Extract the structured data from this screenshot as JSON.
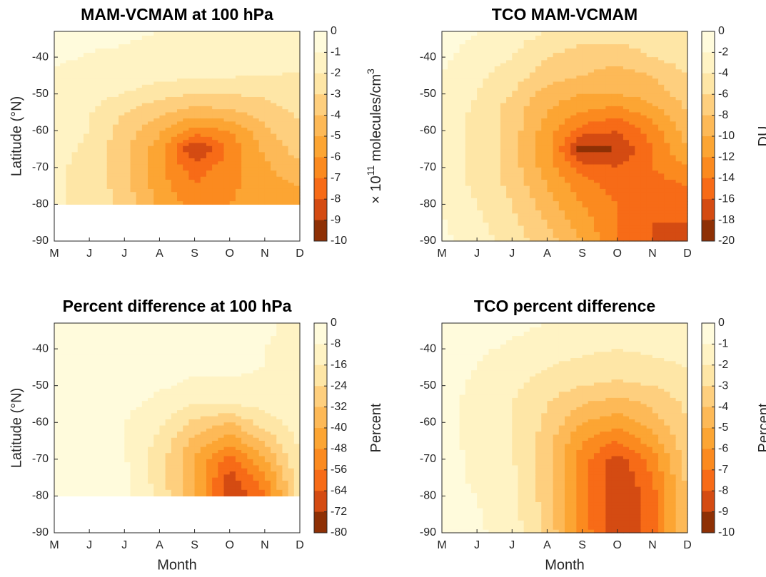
{
  "chart_data": [
    {
      "type": "contourf",
      "title": "MAM-VCMAM at 100 hPa",
      "categories": [
        "M",
        "J",
        "J",
        "A",
        "S",
        "O",
        "N",
        "D"
      ],
      "y": [
        -33,
        -40,
        -45,
        -50,
        -55,
        -60,
        -65,
        -70,
        -75,
        -80,
        -85,
        -90
      ],
      "z": [
        [
          -0.5,
          -0.6,
          -0.8,
          -1.0,
          -1.2,
          -1.3,
          -1.3,
          -1.3
        ],
        [
          -0.8,
          -1.1,
          -1.2,
          -1.3,
          -1.4,
          -1.5,
          -1.5,
          -1.6
        ],
        [
          -1.2,
          -1.3,
          -1.5,
          -1.7,
          -1.8,
          -1.9,
          -2.0,
          -2.1
        ],
        [
          -1.4,
          -1.6,
          -2.0,
          -2.6,
          -3.0,
          -3.0,
          -2.8,
          -2.3
        ],
        [
          -1.6,
          -1.9,
          -3.0,
          -3.8,
          -4.5,
          -4.2,
          -3.5,
          -2.8
        ],
        [
          -1.7,
          -2.0,
          -3.5,
          -4.8,
          -6.5,
          -6.0,
          -4.2,
          -3.2
        ],
        [
          -1.8,
          -2.1,
          -3.8,
          -5.5,
          -9.2,
          -6.8,
          -4.8,
          -3.5
        ],
        [
          -1.9,
          -2.2,
          -3.8,
          -5.8,
          -7.5,
          -6.5,
          -5.2,
          -4.2
        ],
        [
          -1.9,
          -2.2,
          -3.6,
          -5.5,
          -7.0,
          -6.2,
          -5.5,
          -5.0
        ],
        [
          -1.9,
          -2.2,
          -3.4,
          -5.2,
          -6.5,
          -6.0,
          -5.6,
          -5.3
        ],
        [
          null,
          null,
          null,
          null,
          null,
          null,
          null,
          null
        ],
        [
          null,
          null,
          null,
          null,
          null,
          null,
          null,
          null
        ]
      ],
      "ylim": [
        -90,
        -33
      ],
      "yticks": [
        -90,
        -80,
        -70,
        -60,
        -50,
        -40
      ],
      "ylabel": "Latitude (°N)",
      "cticks": [
        0,
        -1,
        -2,
        -3,
        -4,
        -5,
        -6,
        -7,
        -8,
        -9,
        -10
      ],
      "colorbar_label": [
        "× 10",
        "11",
        " molecules/cm",
        "3"
      ],
      "colors": [
        "#fffbdc",
        "#fff3c4",
        "#fee6a6",
        "#fecf7e",
        "#fdb957",
        "#fca533",
        "#fb8a1f",
        "#f76b17",
        "#d44b12",
        "#8e3005"
      ]
    },
    {
      "type": "contourf",
      "title": "TCO MAM-VCMAM",
      "categories": [
        "M",
        "J",
        "J",
        "A",
        "S",
        "O",
        "N",
        "D"
      ],
      "y": [
        -33,
        -40,
        -45,
        -50,
        -55,
        -60,
        -65,
        -70,
        -75,
        -80,
        -85,
        -90
      ],
      "z": [
        [
          -1,
          -2,
          -3,
          -4,
          -5,
          -5,
          -5,
          -4
        ],
        [
          -1.5,
          -3,
          -4,
          -6,
          -7,
          -7,
          -6,
          -5
        ],
        [
          -2,
          -3.5,
          -5,
          -7,
          -8,
          -9,
          -8,
          -6
        ],
        [
          -2.5,
          -4,
          -6,
          -9,
          -10,
          -10,
          -9,
          -7
        ],
        [
          -2.5,
          -4.5,
          -7,
          -10,
          -12,
          -13,
          -11,
          -8
        ],
        [
          -2.5,
          -4.5,
          -7,
          -11,
          -15,
          -16,
          -13,
          -9
        ],
        [
          -2.5,
          -4.5,
          -7,
          -11,
          -19,
          -18,
          -14,
          -10
        ],
        [
          -2.5,
          -4.5,
          -7,
          -11,
          -15,
          -16,
          -14,
          -12
        ],
        [
          -2.5,
          -4.5,
          -6.5,
          -10,
          -13,
          -15,
          -15,
          -14
        ],
        [
          -2.5,
          -4,
          -6,
          -9,
          -12,
          -14,
          -16,
          -15
        ],
        [
          -1.8,
          -3.5,
          -5.5,
          -8,
          -11,
          -14,
          -16,
          -16
        ],
        [
          -1.5,
          -3,
          -5,
          -7,
          -10,
          -14,
          -16,
          -16
        ]
      ],
      "ylim": [
        -90,
        -33
      ],
      "yticks": [
        -90,
        -80,
        -70,
        -60,
        -50,
        -40
      ],
      "cticks": [
        0,
        -2,
        -4,
        -6,
        -8,
        -10,
        -12,
        -14,
        -16,
        -18,
        -20
      ],
      "colorbar_label": [
        "DU"
      ],
      "colors": [
        "#fffbdc",
        "#fff3c4",
        "#fee6a6",
        "#fecf7e",
        "#fdb957",
        "#fca533",
        "#fb8a1f",
        "#f76b17",
        "#d44b12",
        "#8e3005"
      ]
    },
    {
      "type": "contourf",
      "title": "Percent difference at 100 hPa",
      "categories": [
        "M",
        "J",
        "J",
        "A",
        "S",
        "O",
        "N",
        "D"
      ],
      "y": [
        -33,
        -40,
        -45,
        -50,
        -55,
        -60,
        -65,
        -70,
        -75,
        -80,
        -85,
        -90
      ],
      "z": [
        [
          -2,
          -2,
          -3,
          -4,
          -5,
          -6,
          -7,
          -10
        ],
        [
          -3,
          -3,
          -4,
          -5,
          -6,
          -7,
          -8,
          -9
        ],
        [
          -4,
          -4,
          -5,
          -6,
          -7,
          -7,
          -8,
          -9
        ],
        [
          -4,
          -4,
          -5,
          -7,
          -9,
          -9,
          -9,
          -8
        ],
        [
          -4,
          -4,
          -6,
          -10,
          -16,
          -16,
          -13,
          -10
        ],
        [
          -5,
          -5,
          -8,
          -14,
          -26,
          -32,
          -20,
          -12
        ],
        [
          -5,
          -5,
          -8,
          -18,
          -35,
          -45,
          -30,
          -14
        ],
        [
          -5,
          -5,
          -7,
          -20,
          -40,
          -60,
          -40,
          -16
        ],
        [
          -5,
          -5,
          -6,
          -20,
          -40,
          -68,
          -50,
          -18
        ],
        [
          -5,
          -5,
          -6,
          -18,
          -40,
          -72,
          -58,
          -20
        ],
        [
          null,
          null,
          null,
          null,
          null,
          null,
          null,
          null
        ],
        [
          null,
          null,
          null,
          null,
          null,
          null,
          null,
          null
        ]
      ],
      "ylim": [
        -90,
        -33
      ],
      "yticks": [
        -90,
        -80,
        -70,
        -60,
        -50,
        -40
      ],
      "ylabel": "Latitude (°N)",
      "xlabel": "Month",
      "cticks": [
        0,
        -8,
        -16,
        -24,
        -32,
        -40,
        -48,
        -56,
        -64,
        -72,
        -80
      ],
      "colorbar_label": [
        "Percent"
      ],
      "colors": [
        "#fffbdc",
        "#fff3c4",
        "#fee6a6",
        "#fecf7e",
        "#fdb957",
        "#fca533",
        "#fb8a1f",
        "#f76b17",
        "#d44b12",
        "#8e3005"
      ]
    },
    {
      "type": "contourf",
      "title": "TCO percent difference",
      "categories": [
        "M",
        "J",
        "J",
        "A",
        "S",
        "O",
        "N",
        "D"
      ],
      "y": [
        -33,
        -40,
        -45,
        -50,
        -55,
        -60,
        -65,
        -70,
        -75,
        -80,
        -85,
        -90
      ],
      "z": [
        [
          -0.5,
          -0.6,
          -0.8,
          -1,
          -1.2,
          -1.5,
          -1.2,
          -1
        ],
        [
          -0.6,
          -0.9,
          -1.1,
          -1.5,
          -1.8,
          -2,
          -1.8,
          -1.5
        ],
        [
          -0.7,
          -1.0,
          -1.5,
          -2,
          -2.3,
          -2.5,
          -2.3,
          -2
        ],
        [
          -0.8,
          -1.1,
          -1.8,
          -2.5,
          -3,
          -3.2,
          -3,
          -2.4
        ],
        [
          -0.8,
          -1.2,
          -2,
          -3,
          -4,
          -4.5,
          -3.8,
          -2.8
        ],
        [
          -0.8,
          -1.2,
          -2,
          -3.2,
          -5,
          -5.5,
          -4.5,
          -3
        ],
        [
          -0.8,
          -1.2,
          -2,
          -3.5,
          -6,
          -7,
          -5.5,
          -3.2
        ],
        [
          -0.8,
          -1.1,
          -1.9,
          -3.5,
          -6.5,
          -8.5,
          -6.5,
          -3.5
        ],
        [
          -0.8,
          -1.1,
          -1.8,
          -3.5,
          -6.5,
          -9,
          -7,
          -3.7
        ],
        [
          -0.8,
          -1.0,
          -1.7,
          -3.5,
          -6.5,
          -9,
          -7.5,
          -3.8
        ],
        [
          -0.5,
          -0.9,
          -1.6,
          -3.3,
          -6.5,
          -9,
          -7.5,
          -3.8
        ],
        [
          -0.3,
          -0.8,
          -1.5,
          -3.2,
          -6.3,
          -9,
          -7.5,
          -3.8
        ]
      ],
      "ylim": [
        -90,
        -33
      ],
      "yticks": [
        -90,
        -80,
        -70,
        -60,
        -50,
        -40
      ],
      "xlabel": "Month",
      "cticks": [
        0,
        -1,
        -2,
        -3,
        -4,
        -5,
        -6,
        -7,
        -8,
        -9,
        -10
      ],
      "colorbar_label": [
        "Percent"
      ],
      "colors": [
        "#fffbdc",
        "#fff3c4",
        "#fee6a6",
        "#fecf7e",
        "#fdb957",
        "#fca533",
        "#fb8a1f",
        "#f76b17",
        "#d44b12",
        "#8e3005"
      ]
    }
  ]
}
